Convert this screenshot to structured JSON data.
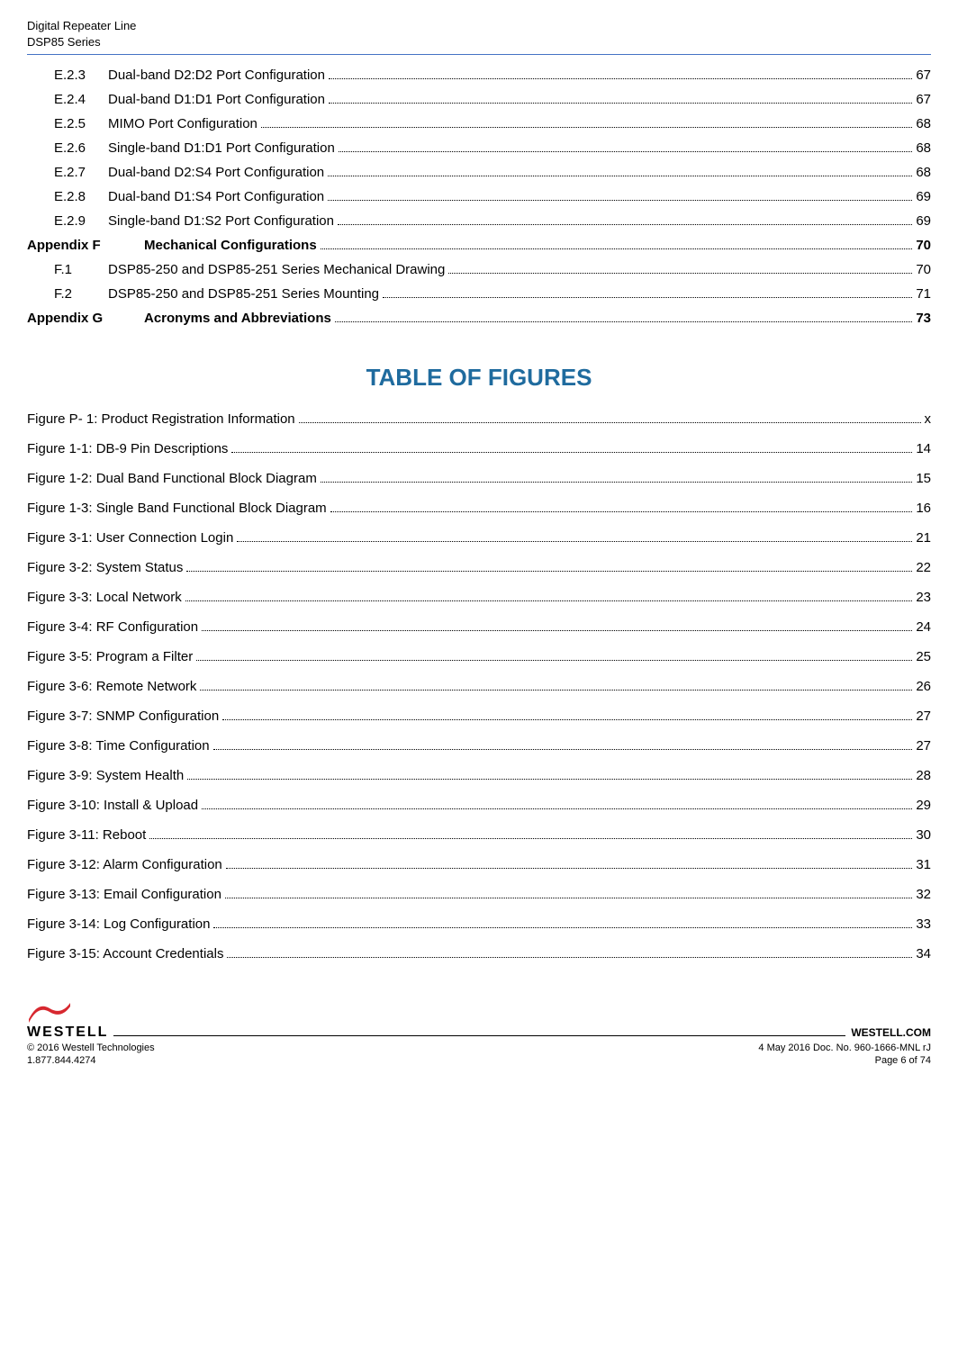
{
  "header": {
    "line1": "Digital Repeater Line",
    "line2": "DSP85 Series"
  },
  "toc_entries": [
    {
      "num": "E.2.3",
      "text": "Dual-band D2:D2 Port Configuration",
      "page": "67",
      "style": "indent-1"
    },
    {
      "num": "E.2.4",
      "text": "Dual-band D1:D1 Port Configuration",
      "page": "67",
      "style": "indent-1"
    },
    {
      "num": "E.2.5",
      "text": "MIMO Port Configuration",
      "page": "68",
      "style": "indent-1"
    },
    {
      "num": "E.2.6",
      "text": "Single-band D1:D1 Port Configuration",
      "page": "68",
      "style": "indent-1"
    },
    {
      "num": "E.2.7",
      "text": "Dual-band D2:S4 Port Configuration",
      "page": "68",
      "style": "indent-1"
    },
    {
      "num": "E.2.8",
      "text": "Dual-band D1:S4 Port Configuration",
      "page": "69",
      "style": "indent-1"
    },
    {
      "num": "E.2.9",
      "text": "Single-band D1:S2 Port Configuration",
      "page": "69",
      "style": "indent-1"
    },
    {
      "num": "Appendix F",
      "text": "Mechanical Configurations",
      "page": "70",
      "style": "appendix-f"
    },
    {
      "num": "F.1",
      "text": "DSP85-250 and DSP85-251 Series Mechanical Drawing",
      "page": "70",
      "style": "indent-2"
    },
    {
      "num": "F.2",
      "text": "DSP85-250 and DSP85-251 Series Mounting",
      "page": "71",
      "style": "indent-2"
    },
    {
      "num": "Appendix G",
      "text": "Acronyms and Abbreviations",
      "page": "73",
      "style": "appendix-g"
    }
  ],
  "figures_title": "TABLE OF FIGURES",
  "figures": [
    {
      "text": "Figure P- 1: Product Registration Information",
      "page": "x"
    },
    {
      "text": "Figure 1-1: DB-9 Pin Descriptions",
      "page": "14"
    },
    {
      "text": "Figure 1-2: Dual Band Functional Block Diagram",
      "page": "15"
    },
    {
      "text": "Figure 1-3: Single Band Functional Block Diagram",
      "page": "16"
    },
    {
      "text": "Figure 3-1: User Connection Login",
      "page": "21"
    },
    {
      "text": "Figure 3-2: System Status",
      "page": "22"
    },
    {
      "text": "Figure 3-3: Local Network",
      "page": "23"
    },
    {
      "text": "Figure 3-4: RF Configuration",
      "page": "24"
    },
    {
      "text": "Figure 3-5: Program a Filter",
      "page": "25"
    },
    {
      "text": "Figure 3-6: Remote Network",
      "page": "26"
    },
    {
      "text": "Figure 3-7: SNMP Configuration",
      "page": "27"
    },
    {
      "text": "Figure 3-8: Time Configuration",
      "page": "27"
    },
    {
      "text": "Figure 3-9: System Health",
      "page": "28"
    },
    {
      "text": "Figure 3-10: Install & Upload",
      "page": "29"
    },
    {
      "text": "Figure 3-11: Reboot",
      "page": "30"
    },
    {
      "text": "Figure 3-12: Alarm Configuration",
      "page": "31"
    },
    {
      "text": "Figure 3-13: Email Configuration",
      "page": "32"
    },
    {
      "text": "Figure 3-14: Log Configuration",
      "page": "33"
    },
    {
      "text": "Figure 3-15: Account Credentials",
      "page": "34"
    }
  ],
  "footer": {
    "logo_text": "WESTELL",
    "site": "WESTELL.COM",
    "copyright": "© 2016 Westell Technologies",
    "doc": "4 May 2016 Doc. No. 960-1666-MNL rJ",
    "phone": "1.877.844.4274",
    "pager": "Page 6 of 74",
    "swoosh_color": "#d7282f"
  }
}
